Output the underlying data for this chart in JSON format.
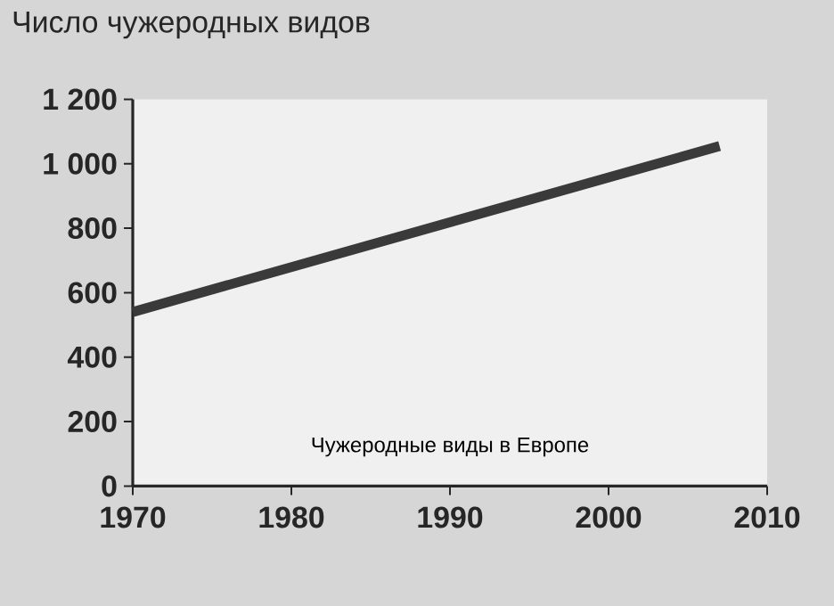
{
  "chart_data": {
    "type": "line",
    "title": "Число чужеродных видов",
    "x": [
      1970,
      2007
    ],
    "series": [
      {
        "color": "#3a3a3a",
        "values": [
          540,
          1055
        ]
      }
    ],
    "xlim": [
      1970,
      2010
    ],
    "xticks": [
      1970,
      1980,
      1990,
      2000,
      2010
    ],
    "ylim": [
      0,
      1200
    ],
    "yticks": [
      0,
      200,
      400,
      600,
      800,
      {
        "value": 1000,
        "label": "1 000"
      },
      {
        "value": 1200,
        "label": "1 200"
      }
    ],
    "annotations": [
      "Чужеродные виды в Европе"
    ],
    "grid": false,
    "marker": "none",
    "line_style": "solid"
  }
}
